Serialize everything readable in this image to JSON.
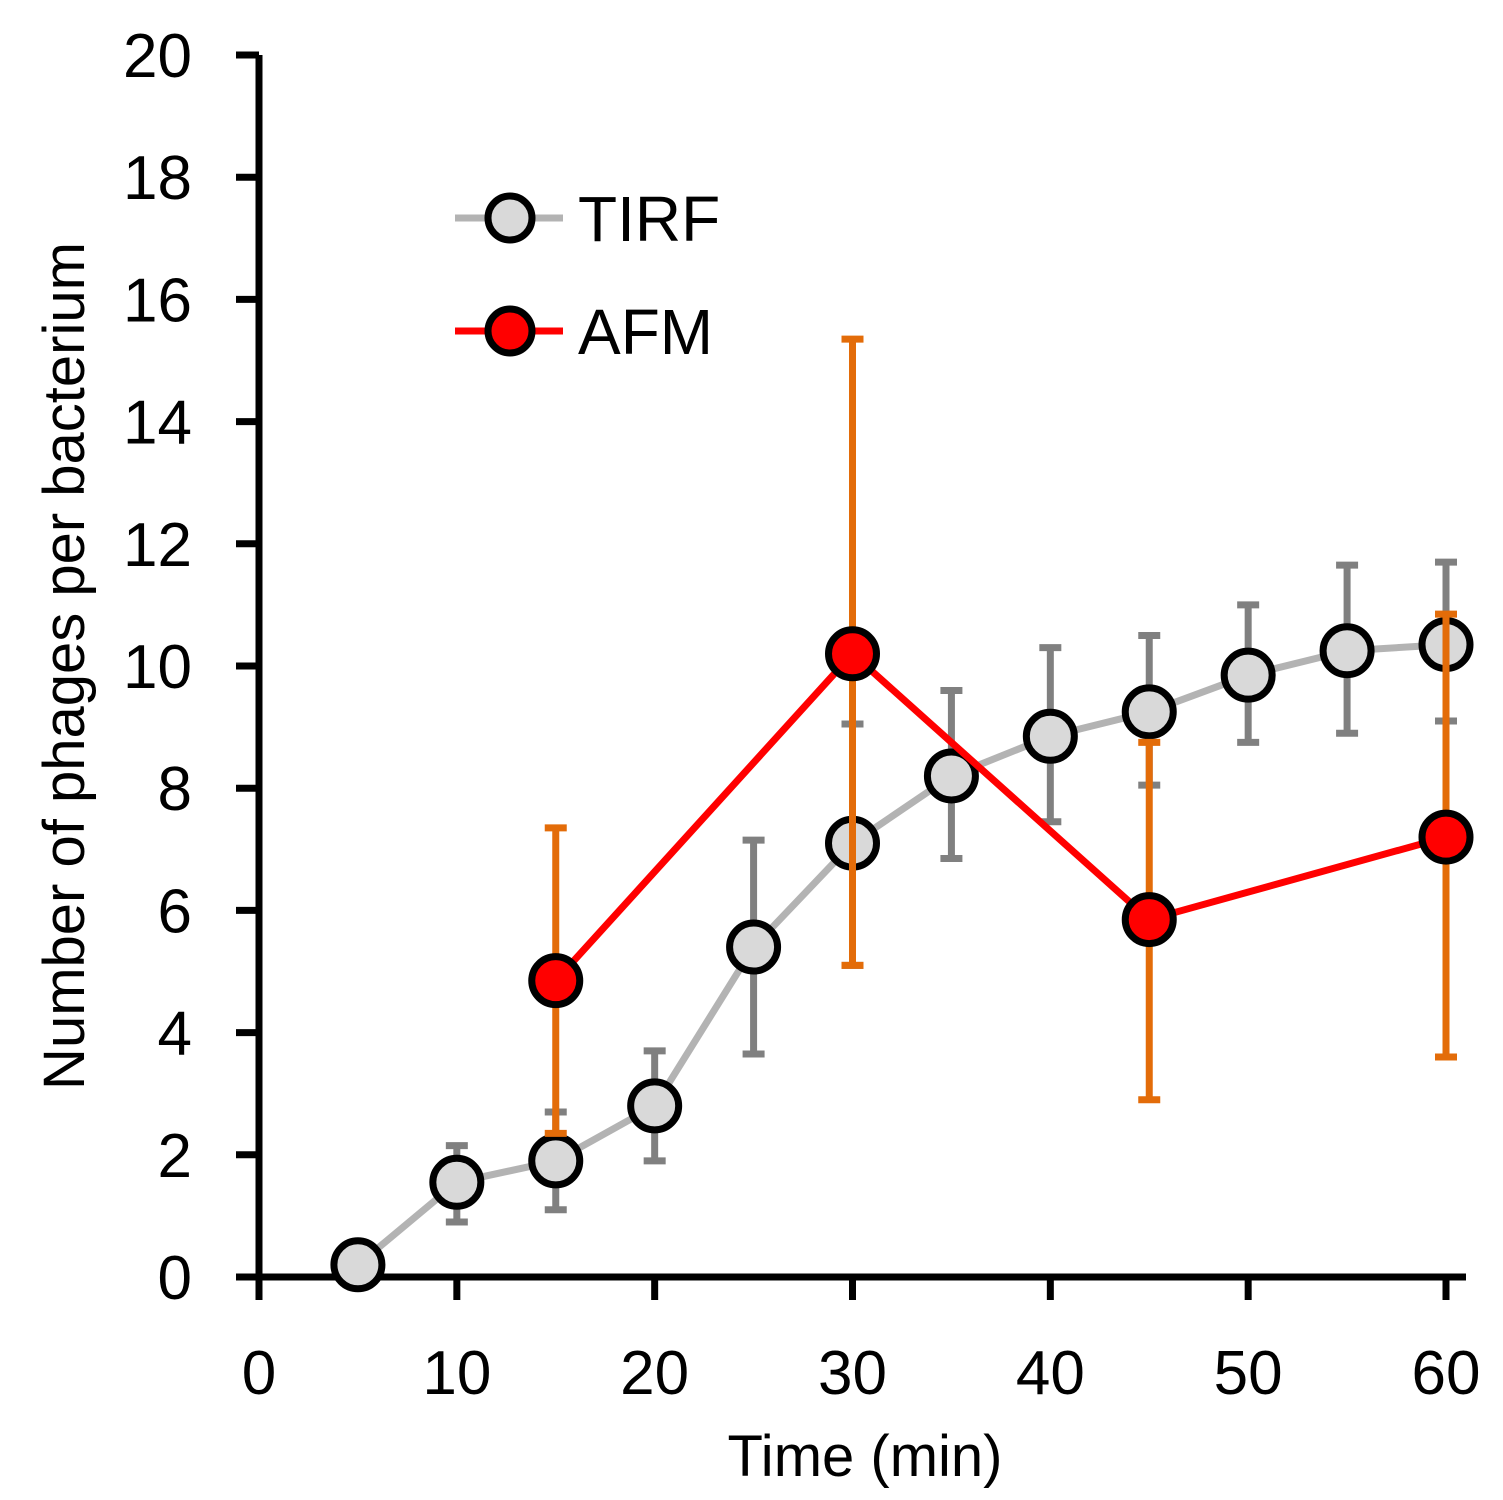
{
  "chart_data": {
    "type": "line",
    "title": "",
    "xlabel": "Time (min)",
    "ylabel": "Number of phages per bacterium",
    "xlim": [
      0,
      60
    ],
    "ylim": [
      0,
      20
    ],
    "xticks": [
      0,
      10,
      20,
      30,
      40,
      50,
      60
    ],
    "yticks": [
      0,
      2,
      4,
      6,
      8,
      10,
      12,
      14,
      16,
      18,
      20
    ],
    "grid": false,
    "legend_position": "top-left",
    "series": [
      {
        "name": "TIRF",
        "line_color": "#b3b3b3",
        "marker_fill": "#d9d9d9",
        "error_color": "#808080",
        "x": [
          5,
          10,
          15,
          20,
          25,
          30,
          35,
          40,
          45,
          50,
          55,
          60
        ],
        "y": [
          0.2,
          1.55,
          1.9,
          2.8,
          5.4,
          7.1,
          8.2,
          8.85,
          9.25,
          9.85,
          10.25,
          10.35
        ],
        "err_low": [
          0.2,
          0.65,
          0.8,
          0.9,
          1.75,
          2.0,
          1.35,
          1.4,
          1.2,
          1.1,
          1.35,
          1.25
        ],
        "err_high": [
          0,
          0.6,
          0.8,
          0.9,
          1.75,
          1.95,
          1.4,
          1.45,
          1.25,
          1.15,
          1.4,
          1.35
        ]
      },
      {
        "name": "AFM",
        "line_color": "#ff0000",
        "marker_fill": "#ff0000",
        "error_color": "#e36c09",
        "x": [
          15,
          30,
          45,
          60
        ],
        "y": [
          4.85,
          10.2,
          5.85,
          7.2
        ],
        "err_low": [
          2.5,
          5.1,
          2.95,
          3.6
        ],
        "err_high": [
          2.5,
          5.15,
          2.9,
          3.65
        ]
      }
    ]
  }
}
